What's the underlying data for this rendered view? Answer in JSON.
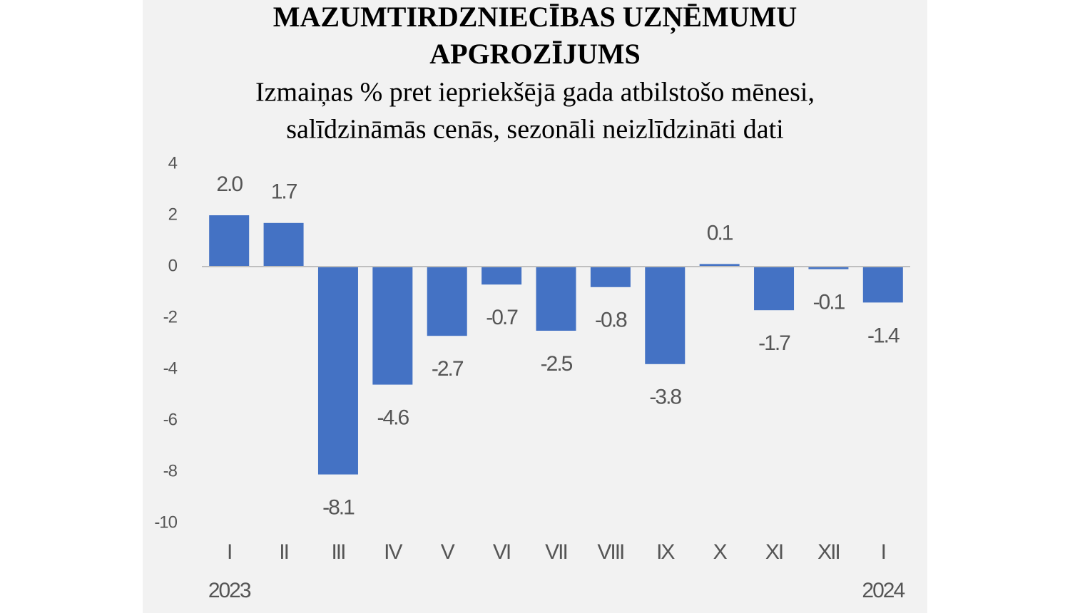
{
  "chart_data": {
    "type": "bar",
    "title": [
      "MAZUMTIRDZNIECĪBAS UZŅĒMUMU",
      "APGROZĪJUMS"
    ],
    "subtitle": [
      "Izmaiņas % pret iepriekšējā gada atbilstošo mēnesi,",
      "salīdzināmās cenās, sezonāli neizlīdzināti dati"
    ],
    "categories": [
      "I",
      "II",
      "III",
      "IV",
      "V",
      "VI",
      "VII",
      "VIII",
      "IX",
      "X",
      "XI",
      "XII",
      "I"
    ],
    "years": [
      "2023",
      null,
      null,
      null,
      null,
      null,
      null,
      null,
      null,
      null,
      null,
      null,
      "2024"
    ],
    "values": [
      2.0,
      1.7,
      -8.1,
      -4.6,
      -2.7,
      -0.7,
      -2.5,
      -0.8,
      -3.8,
      0.1,
      -1.7,
      -0.1,
      -1.4
    ],
    "value_labels": [
      "2.0",
      "1.7",
      "-8.1",
      "-4.6",
      "-2.7",
      "-0.7",
      "-2.5",
      "-0.8",
      "-3.8",
      "0.1",
      "-1.7",
      "-0.1",
      "-1.4"
    ],
    "color": "#4472c4",
    "ylim": [
      -10,
      4
    ],
    "yticks": [
      -10,
      -8,
      -6,
      -4,
      -2,
      0,
      2,
      4
    ],
    "grid": false
  }
}
